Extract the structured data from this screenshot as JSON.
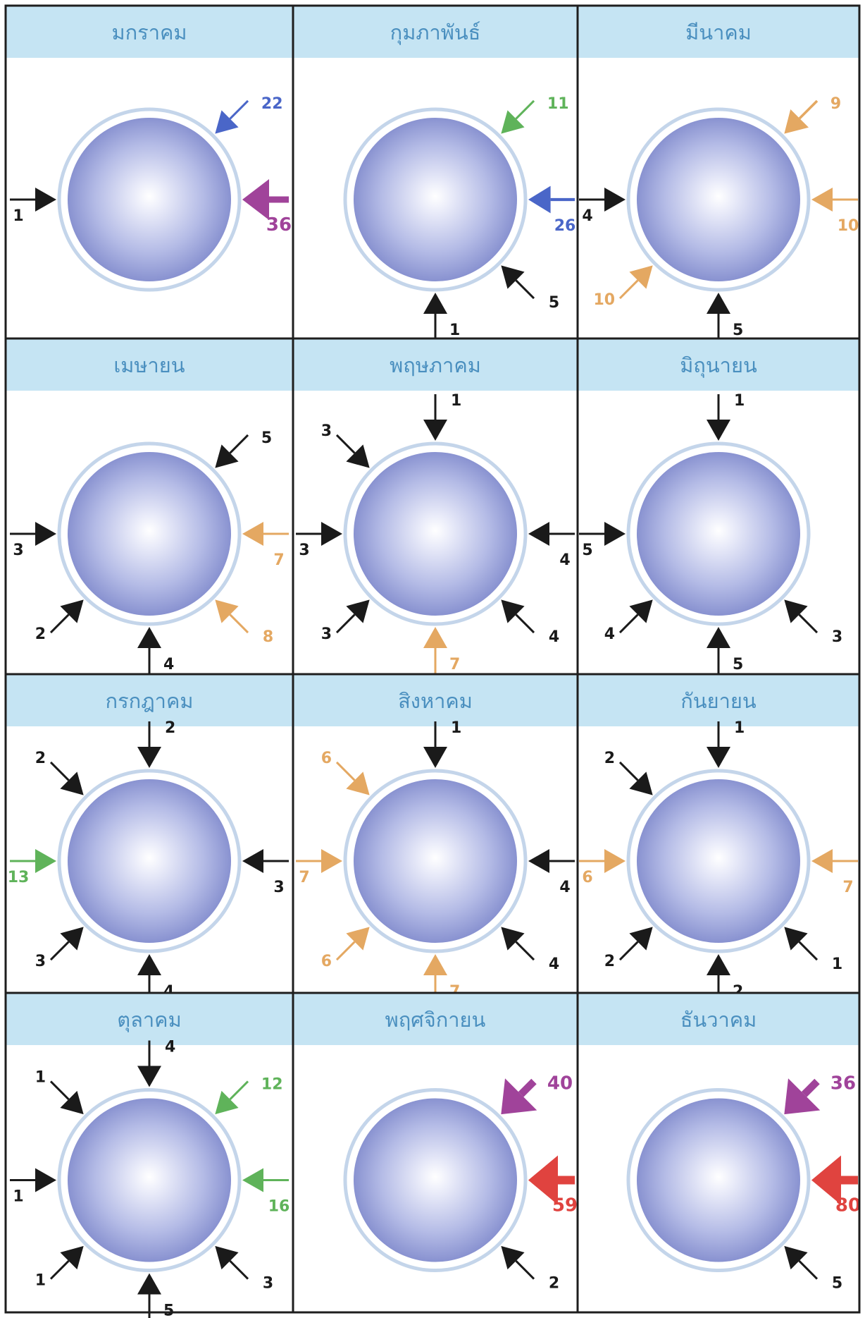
{
  "months": [
    {
      "name": "มกราคม",
      "arrows": [
        {
          "dir": "NE",
          "value": "22",
          "color": "blue",
          "weight": 1
        },
        {
          "dir": "E",
          "value": "36",
          "color": "purple",
          "weight": 3
        },
        {
          "dir": "W",
          "value": "1",
          "color": "black",
          "weight": 1
        }
      ]
    },
    {
      "name": "กุมภาพันธ์",
      "arrows": [
        {
          "dir": "NE",
          "value": "11",
          "color": "green",
          "weight": 1
        },
        {
          "dir": "E",
          "value": "26",
          "color": "blue",
          "weight": 1.4
        },
        {
          "dir": "SE",
          "value": "5",
          "color": "black",
          "weight": 1
        },
        {
          "dir": "S",
          "value": "1",
          "color": "black",
          "weight": 1
        }
      ]
    },
    {
      "name": "มีนาคม",
      "arrows": [
        {
          "dir": "NE",
          "value": "9",
          "color": "orange",
          "weight": 1.2
        },
        {
          "dir": "E",
          "value": "10",
          "color": "orange",
          "weight": 1
        },
        {
          "dir": "W",
          "value": "4",
          "color": "black",
          "weight": 1
        },
        {
          "dir": "SW",
          "value": "10",
          "color": "orange",
          "weight": 1
        },
        {
          "dir": "S",
          "value": "5",
          "color": "black",
          "weight": 1
        }
      ]
    },
    {
      "name": "เมษายน",
      "arrows": [
        {
          "dir": "NE",
          "value": "5",
          "color": "black",
          "weight": 1
        },
        {
          "dir": "W",
          "value": "3",
          "color": "black",
          "weight": 1
        },
        {
          "dir": "E",
          "value": "7",
          "color": "orange",
          "weight": 1
        },
        {
          "dir": "SE",
          "value": "8",
          "color": "orange",
          "weight": 1
        },
        {
          "dir": "SW",
          "value": "2",
          "color": "black",
          "weight": 1
        },
        {
          "dir": "S",
          "value": "4",
          "color": "black",
          "weight": 1
        }
      ]
    },
    {
      "name": "พฤษภาคม",
      "arrows": [
        {
          "dir": "N",
          "value": "1",
          "color": "black",
          "weight": 1
        },
        {
          "dir": "NW",
          "value": "3",
          "color": "black",
          "weight": 1
        },
        {
          "dir": "W",
          "value": "3",
          "color": "black",
          "weight": 1
        },
        {
          "dir": "E",
          "value": "4",
          "color": "black",
          "weight": 1
        },
        {
          "dir": "SW",
          "value": "3",
          "color": "black",
          "weight": 1
        },
        {
          "dir": "SE",
          "value": "4",
          "color": "black",
          "weight": 1
        },
        {
          "dir": "S",
          "value": "7",
          "color": "orange",
          "weight": 1
        }
      ]
    },
    {
      "name": "มิถุนายน",
      "arrows": [
        {
          "dir": "N",
          "value": "1",
          "color": "black",
          "weight": 1
        },
        {
          "dir": "W",
          "value": "5",
          "color": "black",
          "weight": 1
        },
        {
          "dir": "SW",
          "value": "4",
          "color": "black",
          "weight": 1
        },
        {
          "dir": "SE",
          "value": "3",
          "color": "black",
          "weight": 1
        },
        {
          "dir": "S",
          "value": "5",
          "color": "black",
          "weight": 1
        }
      ]
    },
    {
      "name": "กรกฎาคม",
      "arrows": [
        {
          "dir": "N",
          "value": "2",
          "color": "black",
          "weight": 1
        },
        {
          "dir": "NW",
          "value": "2",
          "color": "black",
          "weight": 1
        },
        {
          "dir": "W",
          "value": "13",
          "color": "green",
          "weight": 1
        },
        {
          "dir": "E",
          "value": "3",
          "color": "black",
          "weight": 1
        },
        {
          "dir": "SW",
          "value": "3",
          "color": "black",
          "weight": 1
        },
        {
          "dir": "S",
          "value": "4",
          "color": "black",
          "weight": 1
        }
      ]
    },
    {
      "name": "สิงหาคม",
      "arrows": [
        {
          "dir": "N",
          "value": "1",
          "color": "black",
          "weight": 1
        },
        {
          "dir": "NW",
          "value": "6",
          "color": "orange",
          "weight": 1
        },
        {
          "dir": "W",
          "value": "7",
          "color": "orange",
          "weight": 1
        },
        {
          "dir": "E",
          "value": "4",
          "color": "black",
          "weight": 1
        },
        {
          "dir": "SW",
          "value": "6",
          "color": "orange",
          "weight": 1
        },
        {
          "dir": "SE",
          "value": "4",
          "color": "black",
          "weight": 1
        },
        {
          "dir": "S",
          "value": "7",
          "color": "orange",
          "weight": 1
        }
      ]
    },
    {
      "name": "กันยายน",
      "arrows": [
        {
          "dir": "N",
          "value": "1",
          "color": "black",
          "weight": 1
        },
        {
          "dir": "NW",
          "value": "2",
          "color": "black",
          "weight": 1
        },
        {
          "dir": "W",
          "value": "6",
          "color": "orange",
          "weight": 1
        },
        {
          "dir": "E",
          "value": "7",
          "color": "orange",
          "weight": 1
        },
        {
          "dir": "SW",
          "value": "2",
          "color": "black",
          "weight": 1
        },
        {
          "dir": "SE",
          "value": "1",
          "color": "black",
          "weight": 1
        },
        {
          "dir": "S",
          "value": "2",
          "color": "black",
          "weight": 1
        }
      ]
    },
    {
      "name": "ตุลาคม",
      "arrows": [
        {
          "dir": "N",
          "value": "4",
          "color": "black",
          "weight": 1
        },
        {
          "dir": "NW",
          "value": "1",
          "color": "black",
          "weight": 1
        },
        {
          "dir": "NE",
          "value": "12",
          "color": "green",
          "weight": 1
        },
        {
          "dir": "W",
          "value": "1",
          "color": "black",
          "weight": 1
        },
        {
          "dir": "E",
          "value": "16",
          "color": "green",
          "weight": 1
        },
        {
          "dir": "SW",
          "value": "1",
          "color": "black",
          "weight": 1
        },
        {
          "dir": "SE",
          "value": "3",
          "color": "black",
          "weight": 1
        },
        {
          "dir": "S",
          "value": "5",
          "color": "black",
          "weight": 1
        }
      ]
    },
    {
      "name": "พฤศจิกายน",
      "arrows": [
        {
          "dir": "NE",
          "value": "40",
          "color": "purple",
          "weight": 3.5
        },
        {
          "dir": "E",
          "value": "59",
          "color": "red",
          "weight": 4
        },
        {
          "dir": "SE",
          "value": "2",
          "color": "black",
          "weight": 1
        }
      ]
    },
    {
      "name": "ธันวาคม",
      "arrows": [
        {
          "dir": "NE",
          "value": "36",
          "color": "purple",
          "weight": 3.5
        },
        {
          "dir": "E",
          "value": "80",
          "color": "red",
          "weight": 4
        },
        {
          "dir": "SE",
          "value": "5",
          "color": "black",
          "weight": 1
        }
      ]
    }
  ],
  "colors": {
    "header_bg": "#c5e4f3",
    "header_text": "#4a8fbf",
    "border": "#1e1e1e",
    "sphere_light": "#ffffff",
    "sphere_mid": "#aab2e2",
    "sphere_dark": "#7b85c9",
    "ring": "#c4d5ea",
    "black": "#1a1a1a",
    "blue": "#4a66c8",
    "purple": "#a0439a",
    "green": "#5fb35a",
    "orange": "#e4a862",
    "red": "#e0433f"
  }
}
